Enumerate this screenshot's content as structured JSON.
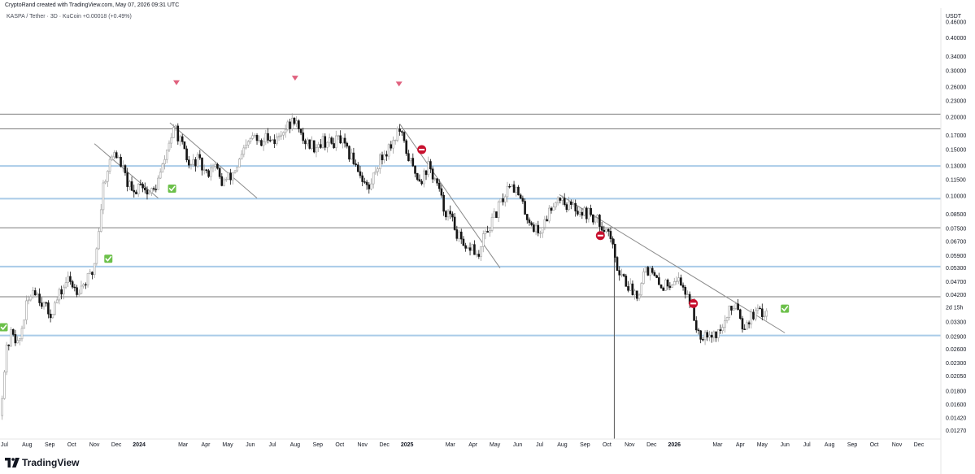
{
  "header": {
    "credit": "CryptoRand created with TradingView.com, May 07, 2026 09:31 UTC",
    "symbol_line": "KASPA / Tether · 3D · KuCoin",
    "change": "+0.00018 (+0.49%)"
  },
  "footer": {
    "brand": "TradingView"
  },
  "colors": {
    "bull": "#9e9e9e",
    "bear": "#151515",
    "blue_level": "#a9cbe8",
    "gray_level": "#7d7d7d",
    "trend": "#8a8a8a",
    "marker_red": "#e0617e",
    "check_green": "#6cc04a",
    "stop_red": "#c8102e"
  },
  "chart_data": {
    "type": "candlestick",
    "title": "",
    "xlabel": "",
    "ylabel": "USDT",
    "scale": "log",
    "ylim": [
      0.0118,
      0.52
    ],
    "xlim": [
      "2023-06-25",
      "2026-12-31"
    ],
    "grid": false,
    "x_ticks": [
      "Jul",
      "Aug",
      "Sep",
      "Oct",
      "Nov",
      "Dec",
      "2024",
      "Mar",
      "Apr",
      "May",
      "Jun",
      "Jul",
      "Aug",
      "Sep",
      "Oct",
      "Nov",
      "Dec",
      "2025",
      "Mar",
      "Apr",
      "May",
      "Jun",
      "Jul",
      "Aug",
      "Sep",
      "Oct",
      "Nov",
      "Dec",
      "2026",
      "Mar",
      "Apr",
      "May",
      "Jun",
      "Jul",
      "Aug",
      "Sep",
      "Oct",
      "Nov",
      "Dec"
    ],
    "x_tick_dates": [
      "2023-07-01",
      "2023-08-01",
      "2023-09-01",
      "2023-10-01",
      "2023-11-01",
      "2023-12-01",
      "2024-01-01",
      "2024-03-01",
      "2024-04-01",
      "2024-05-01",
      "2024-06-01",
      "2024-07-01",
      "2024-08-01",
      "2024-09-01",
      "2024-10-01",
      "2024-11-01",
      "2024-12-01",
      "2025-01-01",
      "2025-03-01",
      "2025-04-01",
      "2025-05-01",
      "2025-06-01",
      "2025-07-01",
      "2025-08-01",
      "2025-09-01",
      "2025-10-01",
      "2025-11-01",
      "2025-12-01",
      "2026-01-01",
      "2026-03-01",
      "2026-04-01",
      "2026-05-01",
      "2026-06-01",
      "2026-07-01",
      "2026-08-01",
      "2026-09-01",
      "2026-10-01",
      "2026-11-01",
      "2026-12-01"
    ],
    "y_ticks": [
      "0.46000",
      "0.40000",
      "0.34000",
      "0.30000",
      "0.26000",
      "0.23000",
      "0.20000",
      "0.17000",
      "0.15000",
      "0.13000",
      "0.11500",
      "0.10000",
      "0.08500",
      "0.07500",
      "0.06700",
      "0.05900",
      "0.05300",
      "0.04700",
      "0.04200",
      "0.03300",
      "0.02900",
      "0.02600",
      "0.02300",
      "0.02050",
      "0.01800",
      "0.01600",
      "0.01420",
      "0.01270"
    ],
    "last_price_label": "2d 15h",
    "last_price": 0.0375,
    "levels": [
      {
        "value": 0.205,
        "kind": "gray"
      },
      {
        "value": 0.18,
        "kind": "gray"
      },
      {
        "value": 0.13,
        "kind": "blue"
      },
      {
        "value": 0.0975,
        "kind": "blue"
      },
      {
        "value": 0.0755,
        "kind": "gray"
      },
      {
        "value": 0.0537,
        "kind": "blue"
      },
      {
        "value": 0.0412,
        "kind": "gray"
      },
      {
        "value": 0.0293,
        "kind": "blue"
      }
    ],
    "trendlines": [
      {
        "from": [
          "2023-11-01",
          0.158
        ],
        "to": [
          "2024-01-27",
          0.098
        ]
      },
      {
        "from": [
          "2024-02-12",
          0.19
        ],
        "to": [
          "2024-06-10",
          0.098
        ]
      },
      {
        "from": [
          "2024-12-22",
          0.188
        ],
        "to": [
          "2025-05-08",
          0.053
        ]
      },
      {
        "from": [
          "2025-07-28",
          0.101
        ],
        "to": [
          "2026-06-01",
          0.03
        ]
      }
    ],
    "vertical_line": "2025-10-11",
    "sell_markers": [
      {
        "date": "2024-02-21",
        "price": 0.27
      },
      {
        "date": "2024-08-01",
        "price": 0.281
      },
      {
        "date": "2024-12-21",
        "price": 0.267
      }
    ],
    "check_markers": [
      {
        "date": "2023-06-30",
        "price": 0.0315
      },
      {
        "date": "2023-11-20",
        "price": 0.0575
      },
      {
        "date": "2024-02-15",
        "price": 0.1065
      },
      {
        "date": "2026-06-01",
        "price": 0.0371
      }
    ],
    "stop_markers": [
      {
        "date": "2025-01-21",
        "price": 0.15
      },
      {
        "date": "2025-09-22",
        "price": 0.0705
      },
      {
        "date": "2026-01-27",
        "price": 0.0388
      }
    ],
    "price_path": [
      [
        "2023-06-25",
        0.0145
      ],
      [
        "2023-07-03",
        0.025
      ],
      [
        "2023-07-12",
        0.031
      ],
      [
        "2023-07-20",
        0.0265
      ],
      [
        "2023-07-30",
        0.037
      ],
      [
        "2023-08-10",
        0.045
      ],
      [
        "2023-08-20",
        0.04
      ],
      [
        "2023-09-01",
        0.035
      ],
      [
        "2023-09-10",
        0.0395
      ],
      [
        "2023-09-25",
        0.048
      ],
      [
        "2023-10-08",
        0.044
      ],
      [
        "2023-10-20",
        0.047
      ],
      [
        "2023-10-30",
        0.051
      ],
      [
        "2023-11-06",
        0.07
      ],
      [
        "2023-11-13",
        0.11
      ],
      [
        "2023-11-20",
        0.13
      ],
      [
        "2023-11-28",
        0.148
      ],
      [
        "2023-12-08",
        0.13
      ],
      [
        "2023-12-16",
        0.112
      ],
      [
        "2023-12-24",
        0.1
      ],
      [
        "2024-01-03",
        0.115
      ],
      [
        "2024-01-12",
        0.102
      ],
      [
        "2024-01-22",
        0.105
      ],
      [
        "2024-02-02",
        0.128
      ],
      [
        "2024-02-12",
        0.165
      ],
      [
        "2024-02-20",
        0.18
      ],
      [
        "2024-03-01",
        0.15
      ],
      [
        "2024-03-10",
        0.128
      ],
      [
        "2024-03-20",
        0.138
      ],
      [
        "2024-04-02",
        0.12
      ],
      [
        "2024-04-12",
        0.135
      ],
      [
        "2024-04-22",
        0.112
      ],
      [
        "2024-05-05",
        0.118
      ],
      [
        "2024-05-15",
        0.132
      ],
      [
        "2024-05-25",
        0.15
      ],
      [
        "2024-06-05",
        0.17
      ],
      [
        "2024-06-15",
        0.155
      ],
      [
        "2024-06-25",
        0.172
      ],
      [
        "2024-07-05",
        0.16
      ],
      [
        "2024-07-15",
        0.18
      ],
      [
        "2024-07-25",
        0.185
      ],
      [
        "2024-08-01",
        0.2
      ],
      [
        "2024-08-07",
        0.17
      ],
      [
        "2024-08-17",
        0.16
      ],
      [
        "2024-08-27",
        0.155
      ],
      [
        "2024-09-08",
        0.162
      ],
      [
        "2024-09-20",
        0.158
      ],
      [
        "2024-10-01",
        0.165
      ],
      [
        "2024-10-12",
        0.145
      ],
      [
        "2024-10-22",
        0.135
      ],
      [
        "2024-11-02",
        0.115
      ],
      [
        "2024-11-10",
        0.105
      ],
      [
        "2024-11-20",
        0.13
      ],
      [
        "2024-12-01",
        0.145
      ],
      [
        "2024-12-12",
        0.16
      ],
      [
        "2024-12-21",
        0.18
      ],
      [
        "2024-12-30",
        0.15
      ],
      [
        "2025-01-10",
        0.125
      ],
      [
        "2025-01-20",
        0.115
      ],
      [
        "2025-01-30",
        0.13
      ],
      [
        "2025-02-10",
        0.112
      ],
      [
        "2025-02-20",
        0.09
      ],
      [
        "2025-03-02",
        0.082
      ],
      [
        "2025-03-12",
        0.07
      ],
      [
        "2025-03-22",
        0.06
      ],
      [
        "2025-03-30",
        0.065
      ],
      [
        "2025-04-08",
        0.057
      ],
      [
        "2025-04-16",
        0.07
      ],
      [
        "2025-04-26",
        0.078
      ],
      [
        "2025-05-06",
        0.09
      ],
      [
        "2025-05-14",
        0.1
      ],
      [
        "2025-05-22",
        0.115
      ],
      [
        "2025-06-01",
        0.102
      ],
      [
        "2025-06-10",
        0.088
      ],
      [
        "2025-06-20",
        0.078
      ],
      [
        "2025-06-30",
        0.072
      ],
      [
        "2025-07-10",
        0.082
      ],
      [
        "2025-07-20",
        0.095
      ],
      [
        "2025-07-30",
        0.1
      ],
      [
        "2025-08-08",
        0.092
      ],
      [
        "2025-08-18",
        0.09
      ],
      [
        "2025-08-28",
        0.087
      ],
      [
        "2025-09-08",
        0.085
      ],
      [
        "2025-09-18",
        0.08
      ],
      [
        "2025-09-28",
        0.076
      ],
      [
        "2025-10-06",
        0.07
      ],
      [
        "2025-10-12",
        0.056
      ],
      [
        "2025-10-22",
        0.05
      ],
      [
        "2025-11-02",
        0.044
      ],
      [
        "2025-11-12",
        0.042
      ],
      [
        "2025-11-22",
        0.054
      ],
      [
        "2025-12-02",
        0.05
      ],
      [
        "2025-12-12",
        0.045
      ],
      [
        "2025-12-22",
        0.046
      ],
      [
        "2026-01-03",
        0.049
      ],
      [
        "2026-01-13",
        0.045
      ],
      [
        "2026-01-23",
        0.04
      ],
      [
        "2026-01-30",
        0.032
      ],
      [
        "2026-02-07",
        0.0295
      ],
      [
        "2026-02-15",
        0.0305
      ],
      [
        "2026-02-25",
        0.0295
      ],
      [
        "2026-03-07",
        0.031
      ],
      [
        "2026-03-17",
        0.036
      ],
      [
        "2026-03-27",
        0.04
      ],
      [
        "2026-04-04",
        0.032
      ],
      [
        "2026-04-14",
        0.034
      ],
      [
        "2026-04-24",
        0.036
      ],
      [
        "2026-05-02",
        0.0345
      ],
      [
        "2026-05-07",
        0.0375
      ]
    ]
  }
}
